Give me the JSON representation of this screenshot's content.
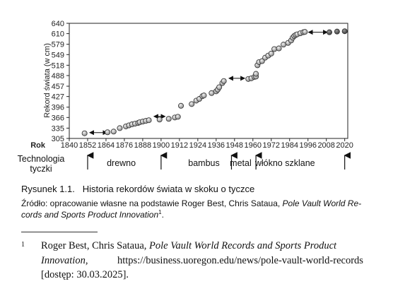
{
  "chart_data": {
    "type": "scatter",
    "ylabel": "Rekord świata (w cm)",
    "xlabel": "Rok",
    "x_ticks": [
      1840,
      1852,
      1864,
      1876,
      1888,
      1900,
      1912,
      1924,
      1936,
      1948,
      1960,
      1972,
      1984,
      1996,
      2008,
      2020
    ],
    "y_ticks": [
      305,
      335,
      366,
      396,
      427,
      457,
      488,
      518,
      549,
      579,
      610,
      640
    ],
    "xlim": [
      1840,
      2022
    ],
    "ylim": [
      305,
      640
    ],
    "grid": false,
    "points": [
      [
        1850,
        320
      ],
      [
        1865,
        323
      ],
      [
        1869,
        325
      ],
      [
        1873,
        335
      ],
      [
        1877,
        340
      ],
      [
        1879,
        343
      ],
      [
        1881,
        346
      ],
      [
        1883,
        348
      ],
      [
        1885,
        350
      ],
      [
        1886,
        352
      ],
      [
        1888,
        354
      ],
      [
        1890,
        356
      ],
      [
        1892,
        358
      ],
      [
        1899,
        360
      ],
      [
        1905,
        362
      ],
      [
        1909,
        366
      ],
      [
        1911,
        368
      ],
      [
        1913,
        400
      ],
      [
        1920,
        405
      ],
      [
        1923,
        415
      ],
      [
        1925,
        420
      ],
      [
        1927,
        428
      ],
      [
        1928,
        430
      ],
      [
        1933,
        437
      ],
      [
        1936,
        442
      ],
      [
        1937,
        447
      ],
      [
        1938,
        454
      ],
      [
        1940,
        466
      ],
      [
        1941,
        472
      ],
      [
        1957,
        478
      ],
      [
        1959,
        480
      ],
      [
        1961,
        484
      ],
      [
        1962,
        485
      ],
      [
        1962,
        493
      ],
      [
        1963,
        518
      ],
      [
        1964,
        527
      ],
      [
        1966,
        530
      ],
      [
        1968,
        540
      ],
      [
        1970,
        546
      ],
      [
        1972,
        552
      ],
      [
        1974,
        565
      ],
      [
        1977,
        567
      ],
      [
        1980,
        578
      ],
      [
        1983,
        583
      ],
      [
        1985,
        590
      ],
      [
        1986,
        598
      ],
      [
        1987,
        603
      ],
      [
        1988,
        606
      ],
      [
        1989,
        608
      ],
      [
        1991,
        611
      ],
      [
        1993,
        614
      ],
      [
        1994,
        615
      ],
      [
        2010,
        614
      ],
      [
        2015,
        616
      ],
      [
        2020,
        617
      ]
    ],
    "gradient_colors": [
      "#d9d9d9",
      "#4a4a4a"
    ],
    "arrows": [
      {
        "from": 1852,
        "to": 1866,
        "y": 322
      },
      {
        "from": 1894,
        "to": 1904,
        "y": 369
      },
      {
        "from": 1943,
        "to": 1956,
        "y": 480
      },
      {
        "from": 1995,
        "to": 2010,
        "y": 614
      }
    ],
    "materials": {
      "label_lines": [
        "Technologia",
        "tyczki"
      ],
      "items": [
        {
          "name": "drewno",
          "center": 1874
        },
        {
          "name": "bambus",
          "center": 1928
        },
        {
          "name": "metal",
          "center": 1952
        },
        {
          "name": "włókno szklane",
          "center": 1981
        }
      ],
      "boundaries": [
        1852,
        1900,
        1946,
        1962,
        2020
      ]
    }
  },
  "caption": {
    "number": "Rysunek 1.1.",
    "title": "Historia rekordów świata w skoku o tyczce"
  },
  "source": {
    "prefix": "Źródło: opracowanie własne na podstawie Roger Best, Chris Sataua, ",
    "title_a": "Pole Vault World Re-",
    "title_b": "cords and Sports Product Innovation",
    "suffix_b": ".",
    "fn_ref": "1"
  },
  "footnote": {
    "mark": "1",
    "line1_authors": "Roger Best, Chris Sataua, ",
    "line1_title": "Pole Vault World Records and Sports Product",
    "line2_title": "Innovation,",
    "line2_url": "https://business.uoregon.edu/news/pole-vault-world-records",
    "line3": "[dostęp: 30.03.2025]."
  }
}
